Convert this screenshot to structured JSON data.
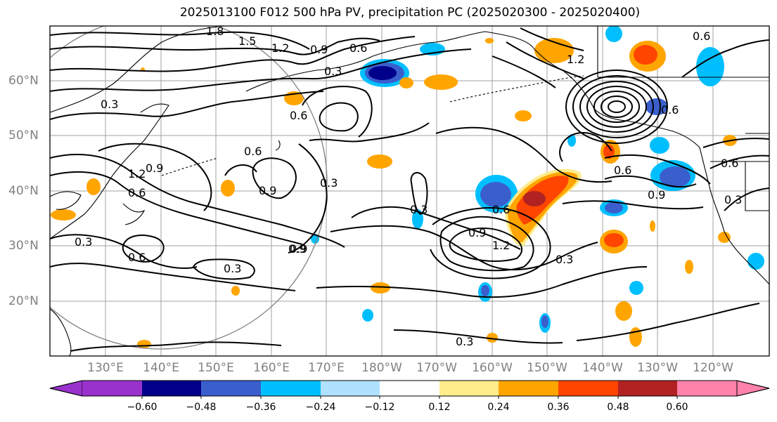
{
  "title": "2025013100 F012 500 hPa PV, precipitation PC (2025020300 - 2025020400)",
  "longitude_labels": [
    "130°E",
    "140°E",
    "150°E",
    "160°E",
    "170°E",
    "180°W",
    "170°W",
    "160°W",
    "150°W",
    "140°W",
    "130°W",
    "120°W"
  ],
  "latitude_labels": [
    "60°N",
    "50°N",
    "40°N",
    "30°N",
    "20°N"
  ],
  "contour_labels": [
    "1.8",
    "1.5",
    "1.2",
    "0.9",
    "0.6",
    "0.3",
    "0.6",
    "0.9",
    "0.3",
    "0.6",
    "0.9",
    "0.3",
    "0.6",
    "0.9",
    "1.2",
    "0.3",
    "0.6",
    "0.9",
    "0.6",
    "0.3",
    "0.3",
    "0.6",
    "0.9",
    "1.2",
    "0.3",
    "0.3",
    "0.6",
    "0.9",
    "0.3",
    "0.6",
    "1.2",
    "0.6"
  ],
  "colorbar": {
    "ticks": [
      "−0.60",
      "−0.48",
      "−0.36",
      "−0.24",
      "−0.12",
      "0.12",
      "0.24",
      "0.36",
      "0.48",
      "0.60"
    ],
    "colors": [
      "#9932cc",
      "#00008b",
      "#3a5fcd",
      "#00bfff",
      "#b0e2ff",
      "#ffffff",
      "#ffec8b",
      "#ffa500",
      "#ff4500",
      "#b22222",
      "#ff82ab"
    ]
  },
  "colors": {
    "grid": "#a0a0a0",
    "coast": "#000000",
    "circle": "#808080"
  }
}
